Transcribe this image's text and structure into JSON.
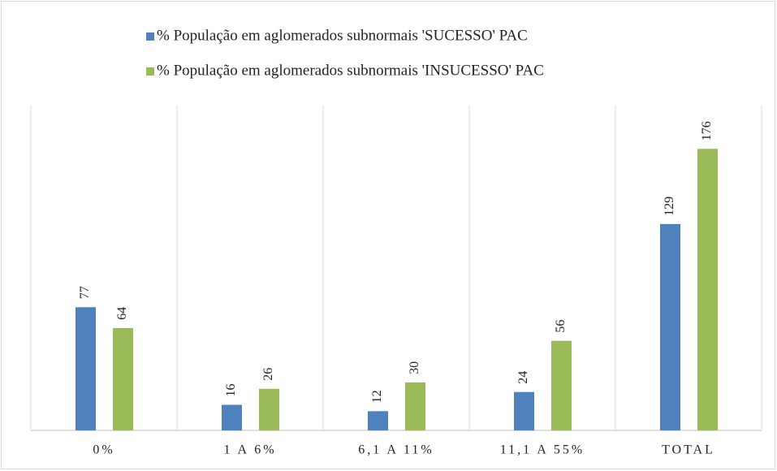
{
  "chart_data": {
    "type": "bar",
    "categories": [
      "0%",
      "1 A 6%",
      "6,1 A 11%",
      "11,1 A 55%",
      "TOTAL"
    ],
    "series": [
      {
        "name": "% População em aglomerados subnormais  'SUCESSO' PAC",
        "color": "#4f81bd",
        "values": [
          77,
          16,
          12,
          24,
          129
        ]
      },
      {
        "name": "% População em aglomerados subnormais  'INSUCESSO' PAC",
        "color": "#9bbb59",
        "values": [
          64,
          26,
          30,
          56,
          176
        ]
      }
    ],
    "ylim": [
      0,
      200
    ]
  }
}
